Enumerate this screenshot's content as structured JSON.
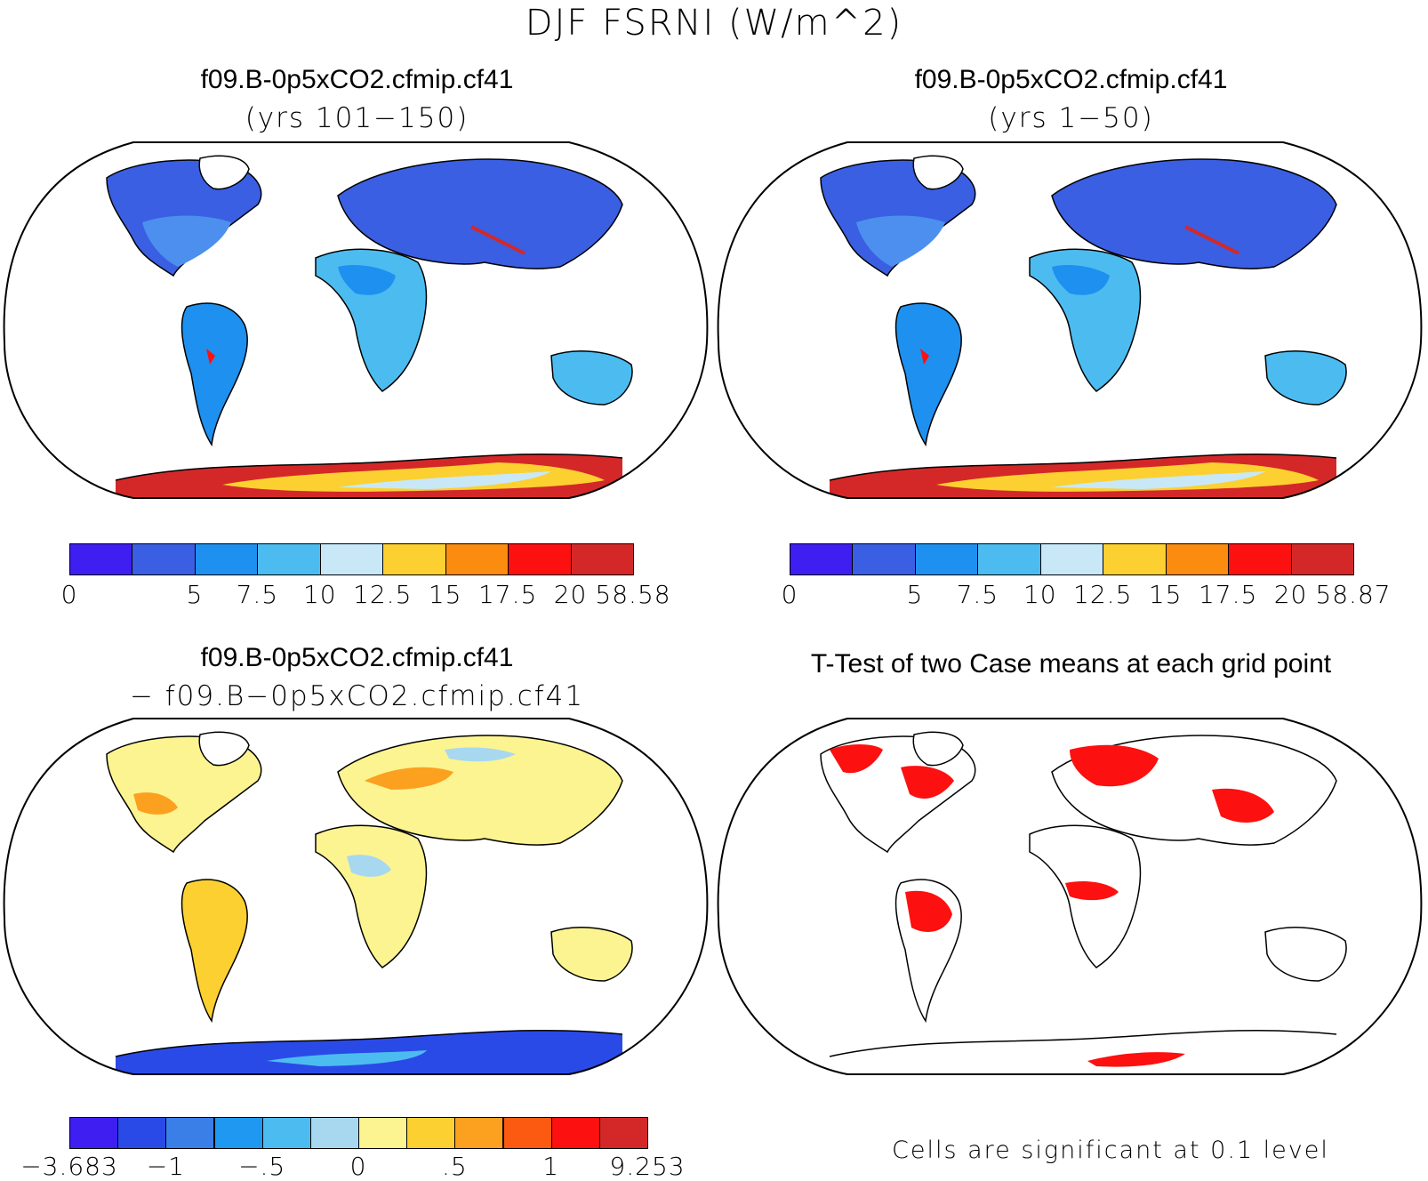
{
  "title": "DJF FSRNI (W/m^2)",
  "panels": [
    {
      "title": "f09.B-0p5xCO2.cfmip.cf41",
      "subtitle": "(yrs 101−150)",
      "colorbar": {
        "colors": [
          "#3f1ef2",
          "#3a5fe2",
          "#1e90f0",
          "#4cbcf0",
          "#c8e8f8",
          "#fcd030",
          "#fc8c10",
          "#fc1010",
          "#d42828"
        ],
        "ticks": [
          "0",
          "5",
          "7.5",
          "10",
          "12.5",
          "15",
          "17.5",
          "20",
          "58.58"
        ],
        "tick_bounds": [
          0,
          2,
          3,
          4,
          5,
          6,
          7,
          8,
          9
        ]
      }
    },
    {
      "title": "f09.B-0p5xCO2.cfmip.cf41",
      "subtitle": "(yrs 1−50)",
      "colorbar": {
        "colors": [
          "#3f1ef2",
          "#3a5fe2",
          "#1e90f0",
          "#4cbcf0",
          "#c8e8f8",
          "#fcd030",
          "#fc8c10",
          "#fc1010",
          "#d42828"
        ],
        "ticks": [
          "0",
          "5",
          "7.5",
          "10",
          "12.5",
          "15",
          "17.5",
          "20",
          "58.87"
        ],
        "tick_bounds": [
          0,
          2,
          3,
          4,
          5,
          6,
          7,
          8,
          9
        ]
      }
    },
    {
      "title": "f09.B-0p5xCO2.cfmip.cf41",
      "subtitle": "− f09.B−0p5xCO2.cfmip.cf41",
      "colorbar": {
        "colors": [
          "#3f1ef2",
          "#2a4ae8",
          "#3a7ee8",
          "#1e98f0",
          "#4cbcf0",
          "#a8d8f0",
          "#fcf490",
          "#fcd030",
          "#fca020",
          "#fc5a10",
          "#fc1010",
          "#d42828"
        ],
        "ticks": [
          "−3.683",
          "−1",
          "−.5",
          "0",
          ".5",
          "1",
          "9.253"
        ],
        "tick_bounds": [
          0,
          2,
          4,
          6,
          8,
          10,
          12
        ]
      }
    },
    {
      "title": "T-Test of two Case means at each grid point",
      "note": "Cells are significant at 0.1 level"
    }
  ]
}
